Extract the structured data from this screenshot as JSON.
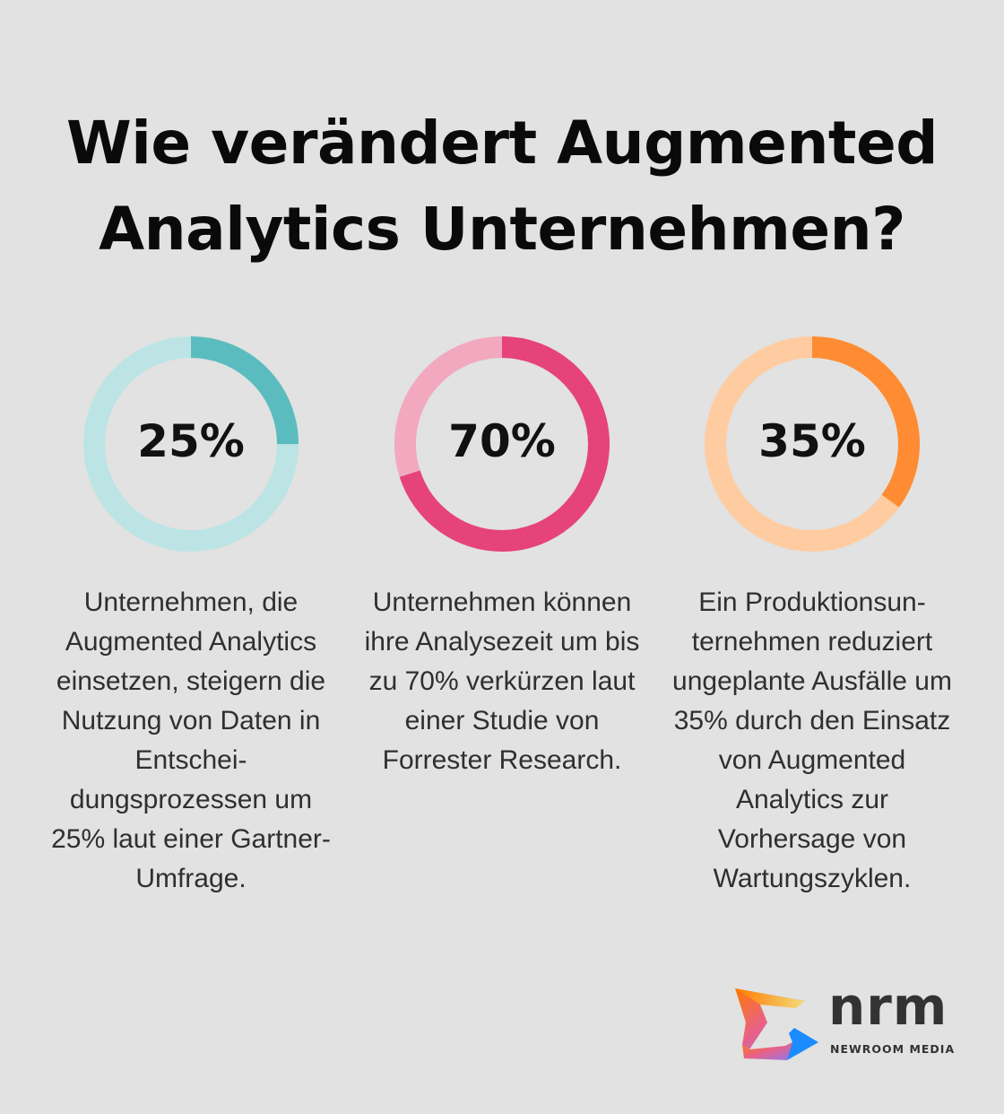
{
  "title": "Wie verändert Augmented Analytics Unternehmen?",
  "chart_data": [
    {
      "type": "pie",
      "variant": "donut",
      "value": 25,
      "label": "25%",
      "color": "#5bbcbf",
      "track_color": "#bde4e5",
      "description": "Unternehmen, die Augmented Analytics einsetzen, steigern die Nutzung von Daten in Entschei-dungsprozessen um 25% laut einer Gartner-Umfrage."
    },
    {
      "type": "pie",
      "variant": "donut",
      "value": 70,
      "label": "70%",
      "color": "#e6437a",
      "track_color": "#f2a9c0",
      "description": "Unternehmen können ihre Analysezeit um bis zu 70% verkürzen laut einer Studie von Forrester Research."
    },
    {
      "type": "pie",
      "variant": "donut",
      "value": 35,
      "label": "35%",
      "color": "#ff8c33",
      "track_color": "#ffcba0",
      "description": "Ein Produktionsun-ternehmen reduziert ungeplante Ausfälle um 35% durch den Einsatz von Augmented Analytics zur Vorhersage von Wartungszyklen."
    }
  ],
  "logo": {
    "word": "nrm",
    "subtitle": "NEWROOM MEDIA"
  }
}
